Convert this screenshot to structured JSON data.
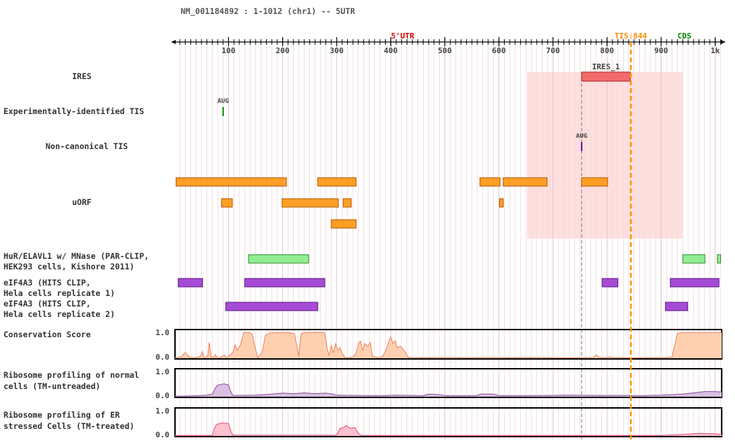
{
  "header": {
    "title": "NM_001184892 : 1-1012 (chr1) -- 5UTR"
  },
  "ruler": {
    "min": 1,
    "max": 1012,
    "ticks": [
      {
        "pos": 100,
        "label": "100"
      },
      {
        "pos": 200,
        "label": "200"
      },
      {
        "pos": 300,
        "label": "300"
      },
      {
        "pos": 400,
        "label": "400"
      },
      {
        "pos": 500,
        "label": "500"
      },
      {
        "pos": 600,
        "label": "600"
      },
      {
        "pos": 700,
        "label": "700"
      },
      {
        "pos": 800,
        "label": "800"
      },
      {
        "pos": 900,
        "label": "900"
      },
      {
        "pos": 1000,
        "label": "1k"
      }
    ],
    "region_labels": [
      {
        "text": "5'UTR",
        "pos": 422,
        "color": "#dd0000"
      },
      {
        "text": "TIS:844",
        "pos": 844,
        "color": "#ff8c00"
      },
      {
        "text": "CDS",
        "pos": 943,
        "color": "#008800"
      }
    ]
  },
  "tis_position": 844,
  "ires_highlight": {
    "start": 652,
    "end": 940
  },
  "tracks": {
    "ires": {
      "label": "IRES",
      "features": [
        {
          "name": "IRES_1",
          "start": 753,
          "end": 843,
          "color": "#f26b6b",
          "stroke": "#b02020"
        }
      ]
    },
    "exp_tis": {
      "label": "Experimentally-identified TIS",
      "marks": [
        {
          "name": "AUG",
          "pos": 90,
          "color": "#008800"
        }
      ]
    },
    "noncanonical_tis": {
      "label": "Non-canonical TIS",
      "marks": [
        {
          "name": "AUG",
          "pos": 753,
          "color": "#7a00b0"
        }
      ]
    },
    "uorf": {
      "label": "uORF",
      "color": "#ff9a1a",
      "stroke": "#b35400",
      "rows": [
        [
          {
            "start": 3,
            "end": 207
          },
          {
            "start": 265,
            "end": 336
          },
          {
            "start": 565,
            "end": 602
          },
          {
            "start": 608,
            "end": 689
          },
          {
            "start": 753,
            "end": 801
          }
        ],
        [
          {
            "start": 87,
            "end": 107
          },
          {
            "start": 199,
            "end": 303
          },
          {
            "start": 312,
            "end": 327
          },
          {
            "start": 601,
            "end": 608
          }
        ],
        [
          {
            "start": 290,
            "end": 336
          }
        ]
      ]
    },
    "hur": {
      "label": "HuR/ELAVL1 w/ MNase (PAR-CLIP,\nHEK293 cells, Kishore 2011)",
      "color": "#90ee90",
      "stroke": "#2e8b2e",
      "features": [
        {
          "start": 137,
          "end": 248
        },
        {
          "start": 940,
          "end": 981
        },
        {
          "start": 1004,
          "end": 1010
        }
      ]
    },
    "eif4a3_1": {
      "label": "eIF4A3 (HITS CLIP,\nHela cells replicate 1)",
      "color": "#a64bd6",
      "stroke": "#5a1a80",
      "features": [
        {
          "start": 7,
          "end": 52
        },
        {
          "start": 130,
          "end": 278
        },
        {
          "start": 791,
          "end": 820
        },
        {
          "start": 917,
          "end": 1007
        }
      ]
    },
    "eif4a3_2": {
      "label": "eIF4A3 (HITS CLIP,\nHela cells replicate 2)",
      "color": "#a64bd6",
      "stroke": "#5a1a80",
      "features": [
        {
          "start": 95,
          "end": 265
        },
        {
          "start": 908,
          "end": 949
        }
      ]
    },
    "conservation": {
      "label": "Conservation Score",
      "y_max_label": "1.0",
      "y_min_label": "0.0",
      "fill": "#ffd0b0",
      "stroke": "#f08060",
      "points": [
        [
          1,
          0.02
        ],
        [
          12,
          0.05
        ],
        [
          20,
          0.22
        ],
        [
          28,
          0.04
        ],
        [
          40,
          0.02
        ],
        [
          48,
          0.08
        ],
        [
          52,
          0.25
        ],
        [
          54,
          0.04
        ],
        [
          58,
          0.02
        ],
        [
          62,
          0.12
        ],
        [
          64,
          0.6
        ],
        [
          66,
          0.35
        ],
        [
          68,
          0.05
        ],
        [
          72,
          0.02
        ],
        [
          76,
          0.15
        ],
        [
          78,
          0.04
        ],
        [
          84,
          0.02
        ],
        [
          92,
          0.12
        ],
        [
          96,
          0.03
        ],
        [
          100,
          0.05
        ],
        [
          102,
          0.12
        ],
        [
          108,
          0.22
        ],
        [
          112,
          0.5
        ],
        [
          116,
          0.3
        ],
        [
          122,
          0.5
        ],
        [
          128,
          0.96
        ],
        [
          136,
          0.98
        ],
        [
          144,
          0.9
        ],
        [
          148,
          0.5
        ],
        [
          154,
          0.03
        ],
        [
          162,
          0.2
        ],
        [
          168,
          0.85
        ],
        [
          176,
          0.95
        ],
        [
          190,
          0.96
        ],
        [
          210,
          0.97
        ],
        [
          222,
          0.92
        ],
        [
          226,
          0.5
        ],
        [
          230,
          0.05
        ],
        [
          234,
          0.92
        ],
        [
          240,
          0.97
        ],
        [
          262,
          0.98
        ],
        [
          278,
          0.97
        ],
        [
          282,
          0.4
        ],
        [
          286,
          0.1
        ],
        [
          290,
          0.5
        ],
        [
          294,
          0.2
        ],
        [
          298,
          0.55
        ],
        [
          302,
          0.3
        ],
        [
          306,
          0.4
        ],
        [
          310,
          0.18
        ],
        [
          316,
          0.02
        ],
        [
          322,
          0.02
        ],
        [
          330,
          0.05
        ],
        [
          336,
          0.2
        ],
        [
          340,
          0.55
        ],
        [
          344,
          0.65
        ],
        [
          348,
          0.3
        ],
        [
          352,
          0.55
        ],
        [
          358,
          0.45
        ],
        [
          362,
          0.6
        ],
        [
          366,
          0.1
        ],
        [
          370,
          0.05
        ],
        [
          378,
          0.02
        ],
        [
          386,
          0.1
        ],
        [
          392,
          0.35
        ],
        [
          396,
          0.6
        ],
        [
          400,
          0.8
        ],
        [
          404,
          0.55
        ],
        [
          408,
          0.65
        ],
        [
          412,
          0.4
        ],
        [
          418,
          0.45
        ],
        [
          422,
          0.35
        ],
        [
          428,
          0.2
        ],
        [
          432,
          0.04
        ],
        [
          440,
          0.02
        ],
        [
          500,
          0.03
        ],
        [
          540,
          0.02
        ],
        [
          580,
          0.03
        ],
        [
          620,
          0.02
        ],
        [
          660,
          0.03
        ],
        [
          700,
          0.02
        ],
        [
          760,
          0.02
        ],
        [
          775,
          0.03
        ],
        [
          780,
          0.12
        ],
        [
          786,
          0.03
        ],
        [
          795,
          0.02
        ],
        [
          805,
          0.05
        ],
        [
          812,
          0.03
        ],
        [
          840,
          0.02
        ],
        [
          880,
          0.02
        ],
        [
          910,
          0.03
        ],
        [
          920,
          0.05
        ],
        [
          930,
          0.94
        ],
        [
          940,
          0.97
        ],
        [
          960,
          0.97
        ],
        [
          1000,
          0.97
        ],
        [
          1012,
          0.97
        ]
      ]
    },
    "ribo_normal": {
      "label": "Ribosome profiling of normal\ncells (TM-untreaded)",
      "y_max_label": "1.0",
      "y_min_label": "0.0",
      "fill": "#d8bfe0",
      "stroke": "#8a4a9a",
      "points": [
        [
          1,
          0.02
        ],
        [
          40,
          0.04
        ],
        [
          60,
          0.06
        ],
        [
          70,
          0.1
        ],
        [
          76,
          0.35
        ],
        [
          80,
          0.45
        ],
        [
          92,
          0.5
        ],
        [
          100,
          0.45
        ],
        [
          104,
          0.2
        ],
        [
          108,
          0.05
        ],
        [
          120,
          0.05
        ],
        [
          150,
          0.06
        ],
        [
          180,
          0.1
        ],
        [
          200,
          0.14
        ],
        [
          220,
          0.12
        ],
        [
          240,
          0.15
        ],
        [
          260,
          0.12
        ],
        [
          280,
          0.14
        ],
        [
          292,
          0.1
        ],
        [
          300,
          0.06
        ],
        [
          340,
          0.05
        ],
        [
          380,
          0.04
        ],
        [
          410,
          0.06
        ],
        [
          440,
          0.05
        ],
        [
          460,
          0.04
        ],
        [
          470,
          0.1
        ],
        [
          490,
          0.08
        ],
        [
          500,
          0.04
        ],
        [
          560,
          0.04
        ],
        [
          565,
          0.1
        ],
        [
          590,
          0.1
        ],
        [
          600,
          0.04
        ],
        [
          700,
          0.05
        ],
        [
          720,
          0.06
        ],
        [
          780,
          0.05
        ],
        [
          840,
          0.05
        ],
        [
          860,
          0.04
        ],
        [
          900,
          0.06
        ],
        [
          940,
          0.1
        ],
        [
          960,
          0.15
        ],
        [
          980,
          0.2
        ],
        [
          1000,
          0.2
        ],
        [
          1012,
          0.18
        ]
      ]
    },
    "ribo_er": {
      "label": "Ribosome profiling of ER\nstressed Cells (TM-treated)",
      "y_max_label": "1.0",
      "y_min_label": "0.0",
      "fill": "#ffc0d0",
      "stroke": "#e0507a",
      "points": [
        [
          1,
          0.02
        ],
        [
          70,
          0.02
        ],
        [
          74,
          0.3
        ],
        [
          78,
          0.45
        ],
        [
          88,
          0.5
        ],
        [
          100,
          0.48
        ],
        [
          104,
          0.2
        ],
        [
          108,
          0.03
        ],
        [
          140,
          0.03
        ],
        [
          260,
          0.03
        ],
        [
          300,
          0.03
        ],
        [
          306,
          0.28
        ],
        [
          312,
          0.32
        ],
        [
          318,
          0.4
        ],
        [
          324,
          0.3
        ],
        [
          334,
          0.32
        ],
        [
          340,
          0.1
        ],
        [
          346,
          0.02
        ],
        [
          400,
          0.02
        ],
        [
          700,
          0.02
        ],
        [
          900,
          0.02
        ],
        [
          940,
          0.06
        ],
        [
          970,
          0.1
        ],
        [
          1000,
          0.08
        ],
        [
          1012,
          0.06
        ]
      ]
    }
  }
}
